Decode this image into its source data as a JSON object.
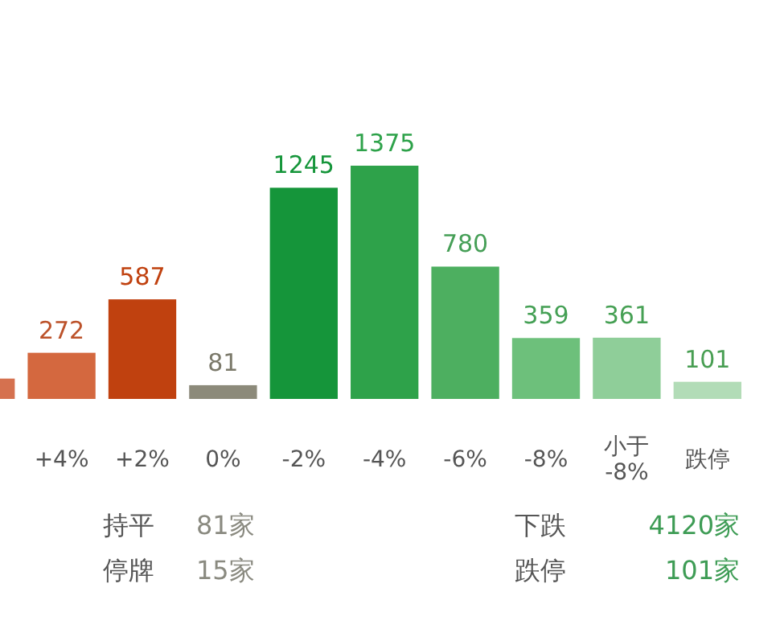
{
  "chart_data": {
    "type": "bar",
    "categories": [
      null,
      "+4%",
      "+2%",
      "0%",
      "-2%",
      "-4%",
      "-6%",
      "-8%",
      "小于\n-8%",
      "跌停"
    ],
    "values": [
      120,
      272,
      587,
      81,
      1245,
      1375,
      780,
      359,
      361,
      101
    ],
    "colors": [
      "#d5714f",
      "#d4683f",
      "#c0410f",
      "#8c8a7a",
      "#15953a",
      "#2ea24a",
      "#4daf60",
      "#6dc07b",
      "#8fce99",
      "#b2dcb7"
    ],
    "value_labels": [
      null,
      "272",
      "587",
      "81",
      "1245",
      "1375",
      "780",
      "359",
      "361",
      "101"
    ],
    "annotations": [
      "持平 81家",
      "停牌 15家",
      "下跌 4120家",
      "跌停 101家"
    ]
  }
}
